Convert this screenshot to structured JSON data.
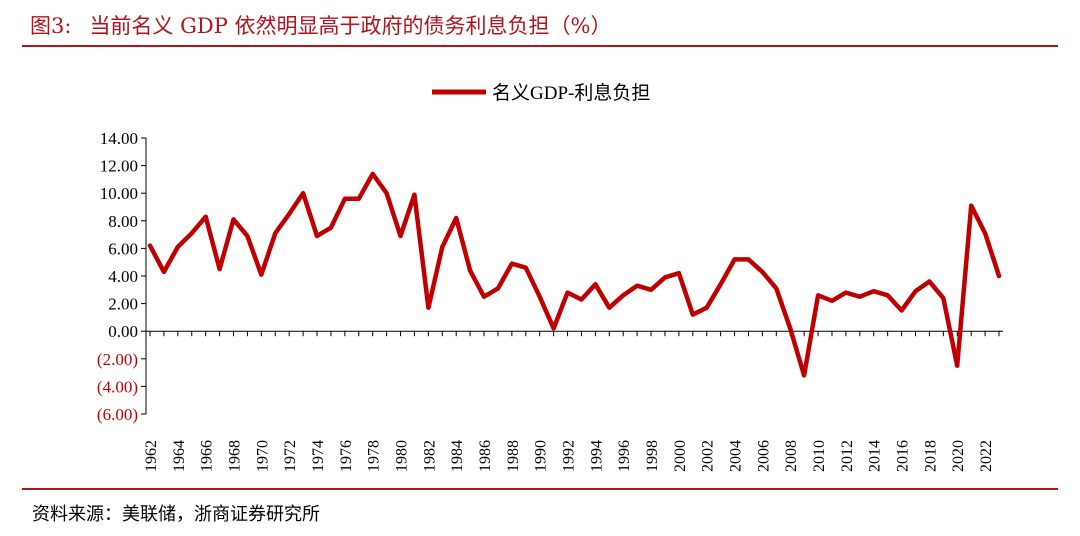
{
  "header": {
    "figure_no": "图3:",
    "title_text": "当前名义 GDP 依然明显高于政府的债务利息负担（%）"
  },
  "footer": {
    "source": "资料来源：美联储，浙商证券研究所"
  },
  "colors": {
    "accent": "#b3141b",
    "series": "#c00000",
    "negative_label": "#c00000",
    "axis": "#000000"
  },
  "chart_data": {
    "type": "line",
    "title": "图3: 当前名义 GDP 依然明显高于政府的债务利息负担（%）",
    "xlabel": "",
    "ylabel": "",
    "ylim": [
      -6,
      14
    ],
    "y_ticks": [
      14,
      12,
      10,
      8,
      6,
      4,
      2,
      0,
      -2,
      -4,
      -6
    ],
    "y_tick_labels": [
      "14.00",
      "12.00",
      "10.00",
      "8.00",
      "6.00",
      "4.00",
      "2.00",
      "0.00",
      "(2.00)",
      "(4.00)",
      "(6.00)"
    ],
    "x_tick_labels": [
      "1962",
      "1964",
      "1966",
      "1968",
      "1970",
      "1972",
      "1974",
      "1976",
      "1978",
      "1980",
      "1982",
      "1984",
      "1986",
      "1988",
      "1990",
      "1992",
      "1994",
      "1996",
      "1998",
      "2000",
      "2002",
      "2004",
      "2006",
      "2008",
      "2010",
      "2012",
      "2014",
      "2016",
      "2018",
      "2020",
      "2022"
    ],
    "legend": [
      "名义GDP-利息负担"
    ],
    "legend_position": "top-center",
    "x": [
      1962,
      1963,
      1964,
      1965,
      1966,
      1967,
      1968,
      1969,
      1970,
      1971,
      1972,
      1973,
      1974,
      1975,
      1976,
      1977,
      1978,
      1979,
      1980,
      1981,
      1982,
      1983,
      1984,
      1985,
      1986,
      1987,
      1988,
      1989,
      1990,
      1991,
      1992,
      1993,
      1994,
      1995,
      1996,
      1997,
      1998,
      1999,
      2000,
      2001,
      2002,
      2003,
      2004,
      2005,
      2006,
      2007,
      2008,
      2009,
      2010,
      2011,
      2012,
      2013,
      2014,
      2015,
      2016,
      2017,
      2018,
      2019,
      2020,
      2021,
      2022,
      2023
    ],
    "series": [
      {
        "name": "名义GDP-利息负担",
        "values": [
          6.2,
          4.3,
          6.1,
          7.1,
          8.3,
          4.5,
          8.1,
          6.9,
          4.1,
          7.1,
          8.5,
          10.0,
          6.9,
          7.5,
          9.6,
          9.6,
          11.4,
          10.0,
          6.9,
          9.9,
          1.7,
          6.1,
          8.2,
          4.4,
          2.5,
          3.1,
          4.9,
          4.6,
          2.5,
          0.2,
          2.8,
          2.3,
          3.4,
          1.7,
          2.6,
          3.3,
          3.0,
          3.9,
          4.2,
          1.2,
          1.7,
          3.4,
          5.2,
          5.2,
          4.3,
          3.1,
          0.2,
          -3.2,
          2.6,
          2.2,
          2.8,
          2.5,
          2.9,
          2.6,
          1.5,
          2.9,
          3.6,
          2.4,
          -2.5,
          9.1,
          7.1,
          4.0
        ]
      }
    ]
  }
}
